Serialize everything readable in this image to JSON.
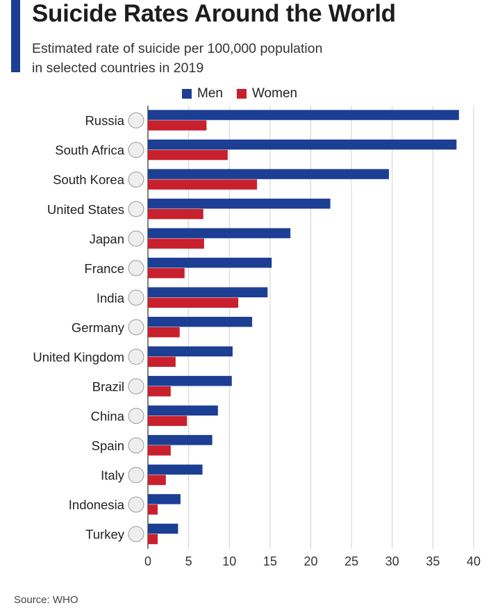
{
  "header": {
    "title": "Suicide Rates Around the World",
    "subtitle_line1": "Estimated rate of suicide per 100,000 population",
    "subtitle_line2": "in selected countries in 2019"
  },
  "footer": {
    "source": "Source: WHO"
  },
  "colors": {
    "men": "#1c3f94",
    "women": "#c8202d",
    "accent": "#1c3f94",
    "grid": "#d0d0d0"
  },
  "chart_data": {
    "type": "bar",
    "orientation": "horizontal",
    "title": "Suicide Rates Around the World",
    "subtitle": "Estimated rate of suicide per 100,000 population in selected countries in 2019",
    "categories": [
      "Russia",
      "South Africa",
      "South Korea",
      "United States",
      "Japan",
      "France",
      "India",
      "Germany",
      "United Kingdom",
      "Brazil",
      "China",
      "Spain",
      "Italy",
      "Indonesia",
      "Turkey"
    ],
    "series": [
      {
        "name": "Men",
        "color": "#1c3f94",
        "values": [
          38.2,
          37.9,
          29.6,
          22.4,
          17.5,
          15.2,
          14.7,
          12.8,
          10.4,
          10.3,
          8.6,
          7.9,
          6.7,
          4.0,
          3.7
        ]
      },
      {
        "name": "Women",
        "color": "#c8202d",
        "values": [
          7.2,
          9.8,
          13.4,
          6.8,
          6.9,
          4.5,
          11.1,
          3.9,
          3.4,
          2.8,
          4.8,
          2.8,
          2.2,
          1.2,
          1.2
        ]
      }
    ],
    "xlim": [
      0,
      40
    ],
    "xticks": [
      0,
      5,
      10,
      15,
      20,
      25,
      30,
      35,
      40
    ],
    "grid": true,
    "legend": "top"
  }
}
